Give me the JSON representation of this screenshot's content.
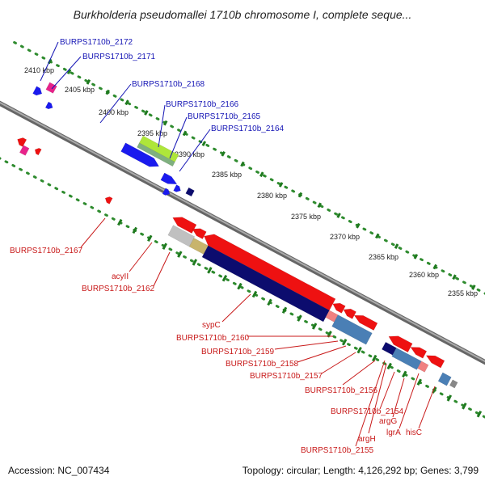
{
  "title": "Burkholderia pseudomallei 1710b chromosome I, complete seque...",
  "footer": {
    "accession": "Accession: NC_007434",
    "topology": "Topology: circular; Length: 4,126,292 bp; Genes: 3,799"
  },
  "ticks": [
    "2410 kbp",
    "2405 kbp",
    "2400 kbp",
    "2395 kbp",
    "2390 kbp",
    "2385 kbp",
    "2380 kbp",
    "2375 kbp",
    "2370 kbp",
    "2365 kbp",
    "2360 kbp",
    "2355 kbp"
  ],
  "forward_labels": [
    "BURPS1710b_2172",
    "BURPS1710b_2171",
    "BURPS1710b_2168",
    "BURPS1710b_2166",
    "BURPS1710b_2165",
    "BURPS1710b_2164"
  ],
  "reverse_labels": [
    "BURPS1710b_2167",
    "acyII",
    "BURPS1710b_2162",
    "sypC",
    "BURPS1710b_2160",
    "BURPS1710b_2159",
    "BURPS1710b_2158",
    "BURPS1710b_2157",
    "BURPS1710b_2156",
    "BURPS1710b_2154",
    "argG",
    "lgrA",
    "hisC",
    "argH",
    "BURPS1710b_2155"
  ],
  "colors": {
    "forward_label": "#1515b5",
    "reverse_label": "#c81919",
    "forward_cds": "#1a1aee",
    "reverse_cds": "#ee1111",
    "backbone": "#888888",
    "tick_dots": "#2e8b2e",
    "pink": "#e8228a",
    "navy": "#0c0c6e",
    "steel": "#4a7fb5",
    "lime": "#aee63a",
    "tan": "#c8b46c",
    "grey": "#c0c0c0"
  }
}
